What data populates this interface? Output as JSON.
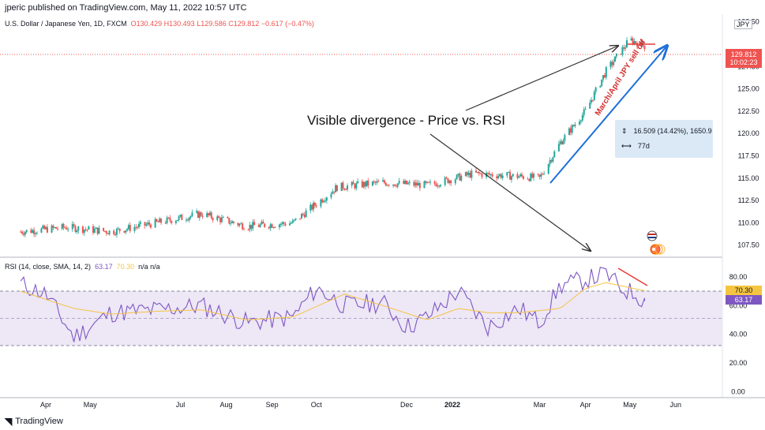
{
  "header": {
    "publisher": "jperic published on TradingView.com, May 11, 2022 10:57 UTC",
    "currency": "JPY"
  },
  "legend": {
    "symbol": "U.S. Dollar / Japanese Yen, 1D, FXCM",
    "open": "O130.429",
    "high": "H130.493",
    "low": "L129.586",
    "close": "C129.812",
    "change": "−0.617 (−0.47%)"
  },
  "rsi_legend": {
    "label": "RSI (14, close, SMA, 14, 2)",
    "rsi_value": "63.17",
    "sma_value": "70.30",
    "na": "n/a  n/a"
  },
  "annotation": {
    "divergence_text": "Visible divergence - Price vs. RSI",
    "arrow_label": "March/April JPY sell off",
    "measure_range": "16.509 (14.42%), 1650.9",
    "measure_bars": "77d"
  },
  "price_tag": {
    "price": "129.812",
    "countdown": "10:02:23"
  },
  "rsi_tags": {
    "sma": "70.30",
    "rsi": "63.17"
  },
  "footer": {
    "brand": "TradingView"
  },
  "colors": {
    "up": "#26a69a",
    "down": "#ef5350",
    "rsi": "#7e57c2",
    "sma": "#f5c542",
    "arrow": "#1e6fd9",
    "divergence": "#e53935",
    "rsi_band": "#ede7f6"
  },
  "chart_data": [
    {
      "type": "candlestick",
      "title": "U.S. Dollar / Japanese Yen, 1D, FXCM",
      "x_ticks": [
        "Apr",
        "May",
        "Jul",
        "Aug",
        "Sep",
        "Oct",
        "Dec",
        "2022",
        "Mar",
        "Apr",
        "May",
        "Jun"
      ],
      "y_ticks": [
        107.5,
        110.0,
        112.5,
        115.0,
        117.5,
        120.0,
        122.5,
        125.0,
        127.5,
        132.5
      ],
      "ylim": [
        106.5,
        133
      ],
      "last_price": 129.812,
      "x": [
        "2021-03-15",
        "2021-04-15",
        "2021-05-15",
        "2021-06-15",
        "2021-07-15",
        "2021-08-15",
        "2021-09-15",
        "2021-10-15",
        "2021-11-15",
        "2021-12-15",
        "2022-01-15",
        "2022-02-15",
        "2022-03-01",
        "2022-03-15",
        "2022-04-01",
        "2022-04-15",
        "2022-05-01",
        "2022-05-11"
      ],
      "close": [
        109.0,
        109.5,
        109.0,
        110.0,
        111.0,
        109.6,
        110.0,
        114.0,
        114.5,
        114.2,
        115.5,
        115.2,
        115.0,
        119.0,
        122.5,
        127.0,
        130.5,
        129.8
      ]
    },
    {
      "type": "line",
      "title": "RSI (14, close, SMA, 14, 2)",
      "y_ticks": [
        0.0,
        20.0,
        40.0,
        60.0,
        80.0
      ],
      "ylim": [
        -2,
        86
      ],
      "bands": [
        30,
        50,
        70
      ],
      "series": [
        {
          "name": "RSI",
          "x": [
            "2021-03-15",
            "2021-04-01",
            "2021-04-20",
            "2021-05-15",
            "2021-06-15",
            "2021-07-15",
            "2021-08-15",
            "2021-09-15",
            "2021-10-01",
            "2021-10-20",
            "2021-11-15",
            "2021-12-01",
            "2021-12-15",
            "2022-01-05",
            "2022-01-25",
            "2022-02-15",
            "2022-03-01",
            "2022-03-15",
            "2022-04-01",
            "2022-04-15",
            "2022-04-25",
            "2022-05-05",
            "2022-05-11"
          ],
          "values": [
            75,
            68,
            38,
            55,
            57,
            60,
            48,
            52,
            72,
            60,
            62,
            45,
            52,
            70,
            45,
            58,
            48,
            74,
            78,
            82,
            72,
            68,
            63.17
          ]
        },
        {
          "name": "SMA",
          "x": [
            "2021-03-15",
            "2021-04-20",
            "2021-05-15",
            "2021-06-15",
            "2021-07-15",
            "2021-08-15",
            "2021-09-15",
            "2021-10-20",
            "2021-11-15",
            "2021-12-15",
            "2022-01-05",
            "2022-01-25",
            "2022-02-15",
            "2022-03-15",
            "2022-04-01",
            "2022-04-15",
            "2022-05-11"
          ],
          "values": [
            70,
            58,
            54,
            56,
            57,
            50,
            52,
            68,
            60,
            50,
            58,
            55,
            55,
            58,
            72,
            76,
            70.3
          ]
        }
      ]
    }
  ]
}
